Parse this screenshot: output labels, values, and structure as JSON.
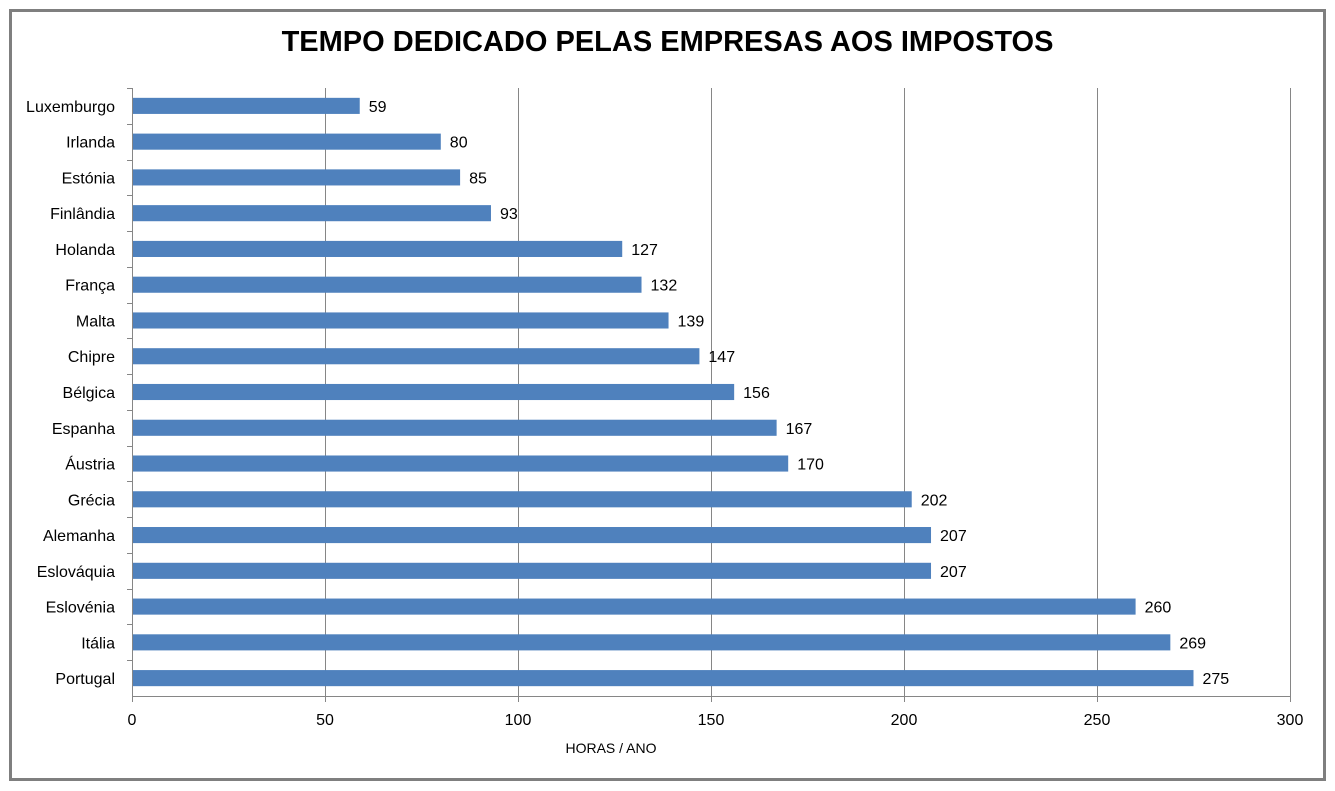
{
  "chart_data": {
    "type": "bar",
    "orientation": "horizontal",
    "title": "TEMPO DEDICADO PELAS EMPRESAS AOS IMPOSTOS",
    "xlabel": "HORAS / ANO",
    "ylabel": "",
    "categories": [
      "Luxemburgo",
      "Irlanda",
      "Estónia",
      "Finlândia",
      "Holanda",
      "França",
      "Malta",
      "Chipre",
      "Bélgica",
      "Espanha",
      "Áustria",
      "Grécia",
      "Alemanha",
      "Eslováquia",
      "Eslovénia",
      "Itália",
      "Portugal"
    ],
    "values": [
      59,
      80,
      85,
      93,
      127,
      132,
      139,
      147,
      156,
      167,
      170,
      202,
      207,
      207,
      260,
      269,
      275
    ],
    "xlim": [
      0,
      300
    ],
    "xticks": [
      0,
      50,
      100,
      150,
      200,
      250,
      300
    ],
    "grid": true,
    "data_labels": true,
    "bar_color": "#4f81bd",
    "grid_color": "#868686"
  }
}
